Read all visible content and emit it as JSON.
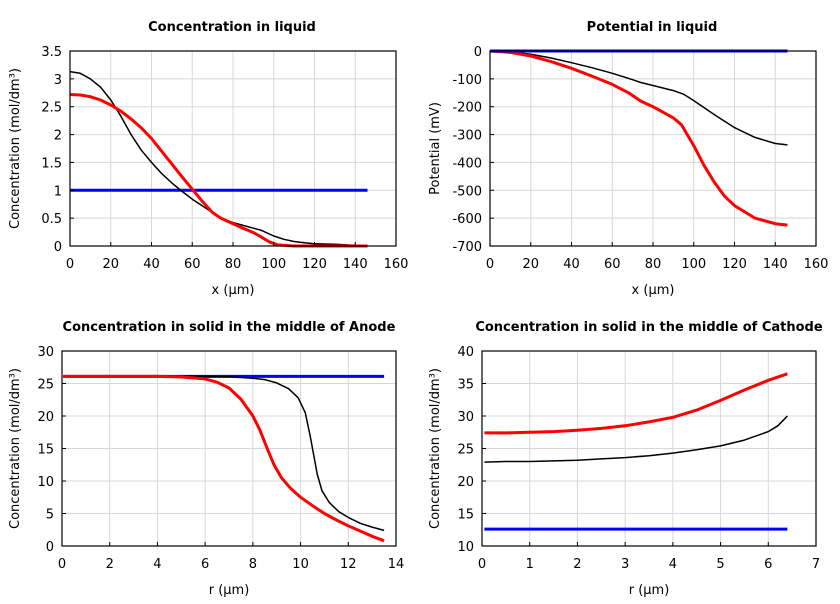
{
  "chart_data": [
    {
      "type": "line",
      "title": "Concentration in liquid",
      "xlabel": "x (µm)",
      "ylabel": "Concentration (mol/dm³)",
      "xlim": [
        0,
        160
      ],
      "ylim": [
        0,
        3.5
      ],
      "xticks": [
        "0",
        "20",
        "40",
        "60",
        "80",
        "100",
        "120",
        "140",
        "160"
      ],
      "yticks": [
        "0",
        "0.5",
        "1",
        "1.5",
        "2",
        "2.5",
        "3",
        "3.5"
      ],
      "grid": true,
      "series": [
        {
          "color": "#0000ff",
          "points": [
            [
              0,
              1
            ],
            [
              146,
              1
            ]
          ]
        },
        {
          "color": "#000000",
          "points": [
            [
              0,
              3.13
            ],
            [
              5,
              3.1
            ],
            [
              10,
              3.0
            ],
            [
              15,
              2.85
            ],
            [
              20,
              2.62
            ],
            [
              25,
              2.33
            ],
            [
              30,
              2.0
            ],
            [
              35,
              1.72
            ],
            [
              40,
              1.5
            ],
            [
              45,
              1.3
            ],
            [
              50,
              1.13
            ],
            [
              55,
              0.98
            ],
            [
              60,
              0.84
            ],
            [
              65,
              0.72
            ],
            [
              70,
              0.6
            ],
            [
              74,
              0.5
            ],
            [
              80,
              0.42
            ],
            [
              85,
              0.37
            ],
            [
              90,
              0.32
            ],
            [
              94,
              0.28
            ],
            [
              100,
              0.18
            ],
            [
              105,
              0.12
            ],
            [
              110,
              0.08
            ],
            [
              115,
              0.06
            ],
            [
              120,
              0.04
            ],
            [
              130,
              0.03
            ],
            [
              140,
              0.01
            ],
            [
              146,
              0
            ]
          ]
        },
        {
          "color": "#ff0000",
          "points": [
            [
              0,
              2.72
            ],
            [
              5,
              2.71
            ],
            [
              10,
              2.68
            ],
            [
              15,
              2.62
            ],
            [
              20,
              2.53
            ],
            [
              25,
              2.42
            ],
            [
              30,
              2.28
            ],
            [
              35,
              2.12
            ],
            [
              40,
              1.93
            ],
            [
              45,
              1.7
            ],
            [
              50,
              1.47
            ],
            [
              55,
              1.24
            ],
            [
              60,
              1.02
            ],
            [
              65,
              0.8
            ],
            [
              70,
              0.6
            ],
            [
              74,
              0.5
            ],
            [
              80,
              0.4
            ],
            [
              85,
              0.32
            ],
            [
              90,
              0.24
            ],
            [
              94,
              0.16
            ],
            [
              98,
              0.07
            ],
            [
              102,
              0.02
            ],
            [
              110,
              0
            ],
            [
              146,
              0
            ]
          ]
        }
      ]
    },
    {
      "type": "line",
      "title": "Potential in liquid",
      "xlabel": "x (µm)",
      "ylabel": "Potential (mV)",
      "xlim": [
        0,
        160
      ],
      "ylim": [
        -700,
        0
      ],
      "xticks": [
        "0",
        "20",
        "40",
        "60",
        "80",
        "100",
        "120",
        "140",
        "160"
      ],
      "yticks": [
        "-700",
        "-600",
        "-500",
        "-400",
        "-300",
        "-200",
        "-100",
        "0"
      ],
      "grid": true,
      "series": [
        {
          "color": "#000000",
          "points": [
            [
              0,
              0
            ],
            [
              10,
              -3
            ],
            [
              20,
              -12
            ],
            [
              30,
              -25
            ],
            [
              40,
              -42
            ],
            [
              50,
              -60
            ],
            [
              60,
              -80
            ],
            [
              70,
              -103
            ],
            [
              74,
              -113
            ],
            [
              80,
              -124
            ],
            [
              90,
              -142
            ],
            [
              95,
              -155
            ],
            [
              100,
              -178
            ],
            [
              110,
              -228
            ],
            [
              120,
              -275
            ],
            [
              130,
              -310
            ],
            [
              140,
              -332
            ],
            [
              146,
              -337
            ]
          ]
        },
        {
          "color": "#ff0000",
          "points": [
            [
              0,
              0
            ],
            [
              10,
              -5
            ],
            [
              20,
              -18
            ],
            [
              30,
              -38
            ],
            [
              40,
              -62
            ],
            [
              50,
              -90
            ],
            [
              60,
              -120
            ],
            [
              68,
              -150
            ],
            [
              74,
              -180
            ],
            [
              80,
              -200
            ],
            [
              90,
              -240
            ],
            [
              94,
              -265
            ],
            [
              100,
              -340
            ],
            [
              105,
              -410
            ],
            [
              110,
              -470
            ],
            [
              115,
              -520
            ],
            [
              120,
              -555
            ],
            [
              130,
              -600
            ],
            [
              140,
              -620
            ],
            [
              146,
              -625
            ]
          ]
        },
        {
          "color": "#0000ff",
          "points": [
            [
              0,
              0
            ],
            [
              146,
              0
            ]
          ]
        }
      ]
    },
    {
      "type": "line",
      "title": "Concentration in solid in the middle of Anode",
      "xlabel": "r (µm)",
      "ylabel": "Concentration (mol/dm³)",
      "xlim": [
        0,
        14
      ],
      "ylim": [
        0,
        30
      ],
      "xticks": [
        "0",
        "2",
        "4",
        "6",
        "8",
        "10",
        "12",
        "14"
      ],
      "yticks": [
        "0",
        "5",
        "10",
        "15",
        "20",
        "25",
        "30"
      ],
      "grid": true,
      "series": [
        {
          "color": "#0000ff",
          "points": [
            [
              0.05,
              26.1
            ],
            [
              13.5,
              26.1
            ]
          ]
        },
        {
          "color": "#000000",
          "points": [
            [
              0.05,
              26.1
            ],
            [
              6,
              26.1
            ],
            [
              7,
              26.05
            ],
            [
              8,
              25.8
            ],
            [
              8.5,
              25.6
            ],
            [
              9,
              25.1
            ],
            [
              9.5,
              24.2
            ],
            [
              9.9,
              22.8
            ],
            [
              10.2,
              20.5
            ],
            [
              10.4,
              17
            ],
            [
              10.55,
              14
            ],
            [
              10.7,
              11
            ],
            [
              10.9,
              8.5
            ],
            [
              11.2,
              6.7
            ],
            [
              11.6,
              5.3
            ],
            [
              12,
              4.4
            ],
            [
              12.5,
              3.5
            ],
            [
              13,
              2.9
            ],
            [
              13.5,
              2.4
            ]
          ]
        },
        {
          "color": "#ff0000",
          "points": [
            [
              0.05,
              26.1
            ],
            [
              4,
              26.1
            ],
            [
              5,
              26.0
            ],
            [
              6,
              25.7
            ],
            [
              6.5,
              25.2
            ],
            [
              7,
              24.3
            ],
            [
              7.5,
              22.6
            ],
            [
              8,
              20
            ],
            [
              8.3,
              17.8
            ],
            [
              8.6,
              15
            ],
            [
              8.9,
              12.4
            ],
            [
              9.2,
              10.5
            ],
            [
              9.6,
              8.8
            ],
            [
              10,
              7.5
            ],
            [
              10.5,
              6.2
            ],
            [
              11,
              5
            ],
            [
              11.5,
              4
            ],
            [
              12,
              3.1
            ],
            [
              12.5,
              2.3
            ],
            [
              13,
              1.5
            ],
            [
              13.5,
              0.8
            ]
          ]
        }
      ]
    },
    {
      "type": "line",
      "title": "Concentration in solid in the middle of Cathode",
      "xlabel": "r (µm)",
      "ylabel": "Concentration (mol/dm³)",
      "xlim": [
        0,
        7
      ],
      "ylim": [
        10,
        40
      ],
      "xticks": [
        "0",
        "1",
        "2",
        "3",
        "4",
        "5",
        "6",
        "7"
      ],
      "yticks": [
        "10",
        "15",
        "20",
        "25",
        "30",
        "35",
        "40"
      ],
      "grid": true,
      "series": [
        {
          "color": "#0000ff",
          "points": [
            [
              0.05,
              12.6
            ],
            [
              6.4,
              12.6
            ]
          ]
        },
        {
          "color": "#000000",
          "points": [
            [
              0.05,
              22.9
            ],
            [
              0.5,
              23.0
            ],
            [
              1,
              23.0
            ],
            [
              1.5,
              23.1
            ],
            [
              2,
              23.2
            ],
            [
              2.5,
              23.4
            ],
            [
              3,
              23.6
            ],
            [
              3.5,
              23.9
            ],
            [
              4,
              24.3
            ],
            [
              4.5,
              24.8
            ],
            [
              5,
              25.4
            ],
            [
              5.5,
              26.3
            ],
            [
              6,
              27.6
            ],
            [
              6.2,
              28.5
            ],
            [
              6.4,
              30
            ]
          ]
        },
        {
          "color": "#ff0000",
          "points": [
            [
              0.05,
              27.4
            ],
            [
              0.5,
              27.4
            ],
            [
              1,
              27.5
            ],
            [
              1.5,
              27.6
            ],
            [
              2,
              27.8
            ],
            [
              2.5,
              28.1
            ],
            [
              3,
              28.5
            ],
            [
              3.5,
              29.1
            ],
            [
              4,
              29.8
            ],
            [
              4.5,
              30.9
            ],
            [
              5,
              32.4
            ],
            [
              5.5,
              34.0
            ],
            [
              6,
              35.5
            ],
            [
              6.4,
              36.5
            ]
          ]
        }
      ]
    }
  ]
}
